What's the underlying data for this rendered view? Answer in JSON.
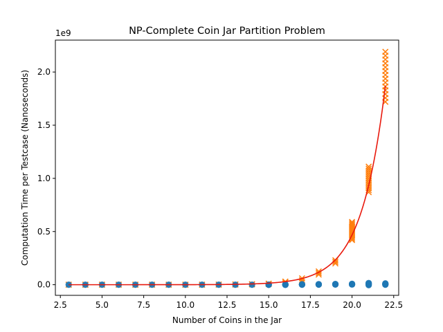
{
  "chart_data": {
    "type": "scatter",
    "title": "NP-Complete Coin Jar Partition Problem",
    "xlabel": "Number of Coins in the Jar",
    "ylabel": "Computation Time per Testcase (Nanoseconds)",
    "y_offset_label": "1e9",
    "xlim": [
      2.2,
      22.8
    ],
    "ylim": [
      -0.1,
      2.3
    ],
    "y_scale_factor": 1000000000,
    "xticks": [
      "2.5",
      "5.0",
      "7.5",
      "10.0",
      "12.5",
      "15.0",
      "17.5",
      "20.0",
      "22.5"
    ],
    "xtick_values": [
      2.5,
      5.0,
      7.5,
      10.0,
      12.5,
      15.0,
      17.5,
      20.0,
      22.5
    ],
    "yticks": [
      "0.0",
      "0.5",
      "1.0",
      "1.5",
      "2.0"
    ],
    "ytick_values": [
      0.0,
      0.5,
      1.0,
      1.5,
      2.0
    ],
    "grid": false,
    "colors": {
      "circles": "#1f77b4",
      "crosses": "#ff7f0e",
      "fit": "#e8180c"
    },
    "series": [
      {
        "marker": "circle",
        "x": [
          3,
          4,
          5,
          6,
          7,
          8,
          9,
          10,
          11,
          12,
          13,
          14,
          15,
          16,
          17,
          18,
          19,
          20,
          21,
          22
        ],
        "y": [
          0,
          0,
          0,
          0,
          0,
          0,
          0,
          0,
          0,
          0,
          0,
          0,
          0,
          0.001,
          0.002,
          0.003,
          0.004,
          0.005,
          0.006,
          0.006
        ],
        "y_spread": [
          0,
          0,
          0,
          0,
          0,
          0,
          0,
          0,
          0,
          0,
          0,
          0,
          0.002,
          0.006,
          0.004,
          0.004,
          0.005,
          0.006,
          0.02,
          0.012
        ]
      },
      {
        "marker": "x",
        "x": [
          3,
          4,
          5,
          6,
          7,
          8,
          9,
          10,
          11,
          12,
          13,
          14,
          15,
          16,
          17,
          18,
          19,
          20,
          21,
          22
        ],
        "y_min": [
          0,
          0,
          0,
          0,
          0,
          0,
          0,
          0,
          0,
          0.001,
          0.002,
          0.003,
          0.006,
          0.013,
          0.025,
          0.095,
          0.2,
          0.42,
          0.87,
          1.72
        ],
        "y_max": [
          0,
          0,
          0,
          0,
          0,
          0,
          0,
          0,
          0,
          0.001,
          0.002,
          0.005,
          0.01,
          0.03,
          0.06,
          0.125,
          0.23,
          0.59,
          1.11,
          2.19
        ]
      },
      {
        "marker": "line",
        "fit": "exponential",
        "x_range": [
          3,
          22
        ],
        "y_end": 1.87,
        "growth_rate": 0.693
      }
    ]
  }
}
